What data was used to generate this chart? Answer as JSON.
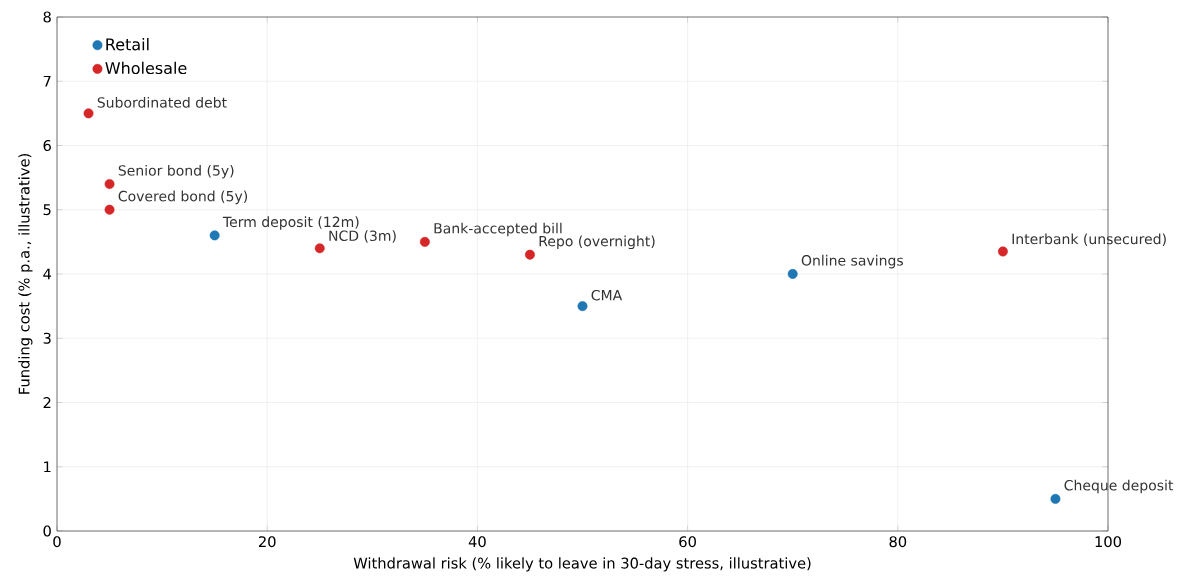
{
  "chart_data": {
    "type": "scatter",
    "xlabel": "Withdrawal risk (% likely to leave in 30-day stress, illustrative)",
    "ylabel": "Funding cost (% p.a., illustrative)",
    "xlim": [
      0,
      100
    ],
    "ylim": [
      0,
      8
    ],
    "xticks": [
      0,
      20,
      40,
      60,
      80,
      100
    ],
    "yticks": [
      0,
      1,
      2,
      3,
      4,
      5,
      6,
      7,
      8
    ],
    "grid": true,
    "legend": "top left",
    "marker": "circle",
    "series": [
      {
        "name": "Retail",
        "color": "#1f77b4",
        "x": [
          15,
          50,
          70,
          95
        ],
        "values": [
          4.6,
          3.5,
          4.0,
          0.5
        ]
      },
      {
        "name": "Wholesale",
        "color": "#d62728",
        "x": [
          3,
          5,
          5,
          25,
          35,
          45,
          90
        ],
        "values": [
          6.5,
          5.4,
          5.0,
          4.4,
          4.5,
          4.3,
          4.35
        ]
      }
    ],
    "annotations": [
      {
        "text": "Term deposit (12m)",
        "x": 15,
        "y": 4.6
      },
      {
        "text": "CMA",
        "x": 50,
        "y": 3.5
      },
      {
        "text": "Online savings",
        "x": 70,
        "y": 4.0
      },
      {
        "text": "Cheque deposit",
        "x": 95,
        "y": 0.5
      },
      {
        "text": "Subordinated debt",
        "x": 3,
        "y": 6.5
      },
      {
        "text": "Senior bond (5y)",
        "x": 5,
        "y": 5.4
      },
      {
        "text": "Covered bond (5y)",
        "x": 5,
        "y": 5.0
      },
      {
        "text": "NCD (3m)",
        "x": 25,
        "y": 4.4
      },
      {
        "text": "Bank-accepted bill",
        "x": 35,
        "y": 4.5
      },
      {
        "text": "Repo (overnight)",
        "x": 45,
        "y": 4.3
      },
      {
        "text": "Interbank (unsecured)",
        "x": 90,
        "y": 4.35
      }
    ]
  }
}
